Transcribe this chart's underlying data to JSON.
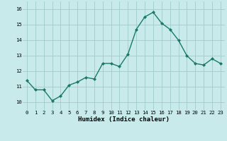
{
  "x": [
    0,
    1,
    2,
    3,
    4,
    5,
    6,
    7,
    8,
    9,
    10,
    11,
    12,
    13,
    14,
    15,
    16,
    17,
    18,
    19,
    20,
    21,
    22,
    23
  ],
  "y": [
    11.4,
    10.8,
    10.8,
    10.1,
    10.4,
    11.1,
    11.3,
    11.6,
    11.5,
    12.5,
    12.5,
    12.3,
    13.1,
    14.7,
    15.5,
    15.8,
    15.1,
    14.7,
    14.0,
    13.0,
    12.5,
    12.4,
    12.8,
    12.5
  ],
  "xlabel": "Humidex (Indice chaleur)",
  "ylim": [
    9.5,
    16.5
  ],
  "xlim": [
    -0.5,
    23.5
  ],
  "yticks": [
    10,
    11,
    12,
    13,
    14,
    15,
    16
  ],
  "xticks": [
    0,
    1,
    2,
    3,
    4,
    5,
    6,
    7,
    8,
    9,
    10,
    11,
    12,
    13,
    14,
    15,
    16,
    17,
    18,
    19,
    20,
    21,
    22,
    23
  ],
  "line_color": "#1a7a6a",
  "marker_color": "#1a7a6a",
  "bg_color": "#c8eaea",
  "grid_color": "#a0cccc",
  "xlabel_fontsize": 6.5,
  "tick_fontsize": 5.2
}
